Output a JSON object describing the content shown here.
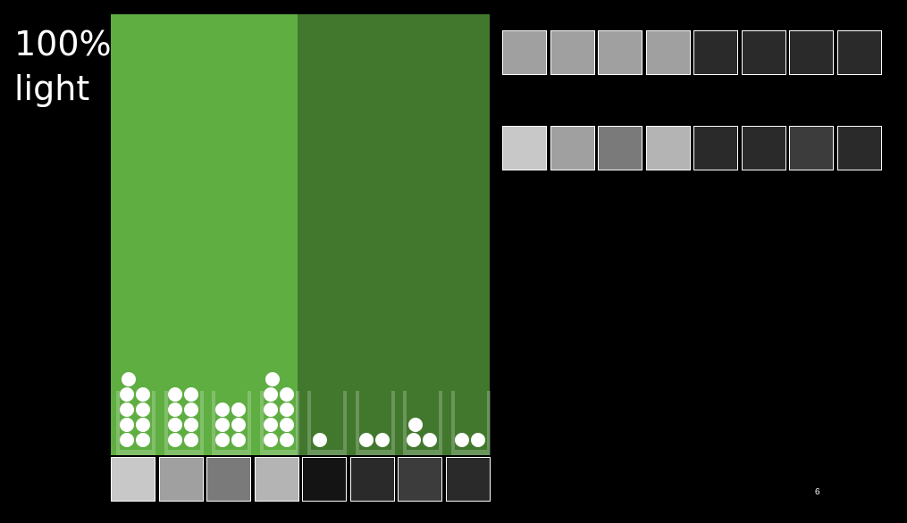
{
  "title": {
    "line1": "100%",
    "line2": "light"
  },
  "colors": {
    "light_green": "#5fae42",
    "dark_green": "#41782d",
    "ball": "#ffffff"
  },
  "tubes": [
    {
      "side": "light",
      "balls": 9
    },
    {
      "side": "light",
      "balls": 8
    },
    {
      "side": "light",
      "balls": 6
    },
    {
      "side": "light",
      "balls": 9
    },
    {
      "side": "dark",
      "balls": 1
    },
    {
      "side": "dark",
      "balls": 2
    },
    {
      "side": "dark",
      "balls": 3
    },
    {
      "side": "dark",
      "balls": 2
    }
  ],
  "bottom_swatches": [
    "#c8c8c8",
    "#a0a0a0",
    "#7a7a7a",
    "#b4b4b4",
    "#141414",
    "#2a2a2a",
    "#3c3c3c",
    "#2a2a2a"
  ],
  "swatch_rows": [
    [
      "#a0a0a0",
      "#a0a0a0",
      "#a0a0a0",
      "#a0a0a0",
      "#2a2a2a",
      "#2a2a2a",
      "#2a2a2a",
      "#2a2a2a"
    ],
    [
      "#c8c8c8",
      "#a0a0a0",
      "#7a7a7a",
      "#b4b4b4",
      "#2a2a2a",
      "#2a2a2a",
      "#3c3c3c",
      "#2a2a2a"
    ]
  ],
  "page_number": "6"
}
